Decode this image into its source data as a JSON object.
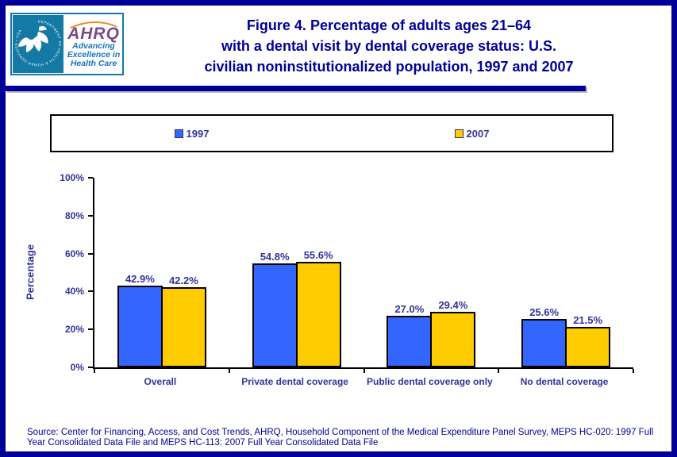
{
  "header": {
    "logo": {
      "hhs_circle_text": "DEPARTMENT OF HEALTH & HUMAN SERVICES • USA",
      "ahrq_acronym": "AHRQ",
      "tagline_lines": [
        "Advancing",
        "Excellence in",
        "Health Care"
      ]
    },
    "title_lines": [
      "Figure 4. Percentage of adults ages 21–64",
      "with a dental visit by dental coverage status: U.S.",
      "civilian noninstitutionalized population, 1997 and 2007"
    ]
  },
  "chart_data": {
    "type": "bar",
    "title": "Figure 4. Percentage of adults ages 21–64 with a dental visit by dental coverage status: U.S. civilian noninstitutionalized population, 1997 and 2007",
    "categories": [
      "Overall",
      "Private dental coverage",
      "Public dental coverage only",
      "No dental coverage"
    ],
    "series": [
      {
        "name": "1997",
        "color": "#3366FF",
        "values": [
          42.9,
          54.8,
          27.0,
          25.6
        ]
      },
      {
        "name": "2007",
        "color": "#FFCC00",
        "values": [
          42.2,
          55.6,
          29.4,
          21.5
        ]
      }
    ],
    "xlabel": "",
    "ylabel": "Percentage",
    "ylim": [
      0,
      100
    ],
    "yticks": [
      "0%",
      "20%",
      "40%",
      "60%",
      "80%",
      "100%"
    ],
    "grid": false,
    "legend_position": "top",
    "data_label_format": "one_decimal_percent"
  },
  "footer": {
    "source_text": "Source: Center for Financing, Access, and Cost Trends, AHRQ, Household Component of the Medical Expenditure Panel Survey, MEPS HC-020: 1997 Full Year Consolidated Data File and MEPS HC-113: 2007 Full Year Consolidated Data File"
  },
  "colors": {
    "frame_border": "#000099",
    "title_text": "#000099",
    "chart_text": "#333399",
    "bar_1997": "#3366FF",
    "bar_2007": "#FFCC00"
  }
}
